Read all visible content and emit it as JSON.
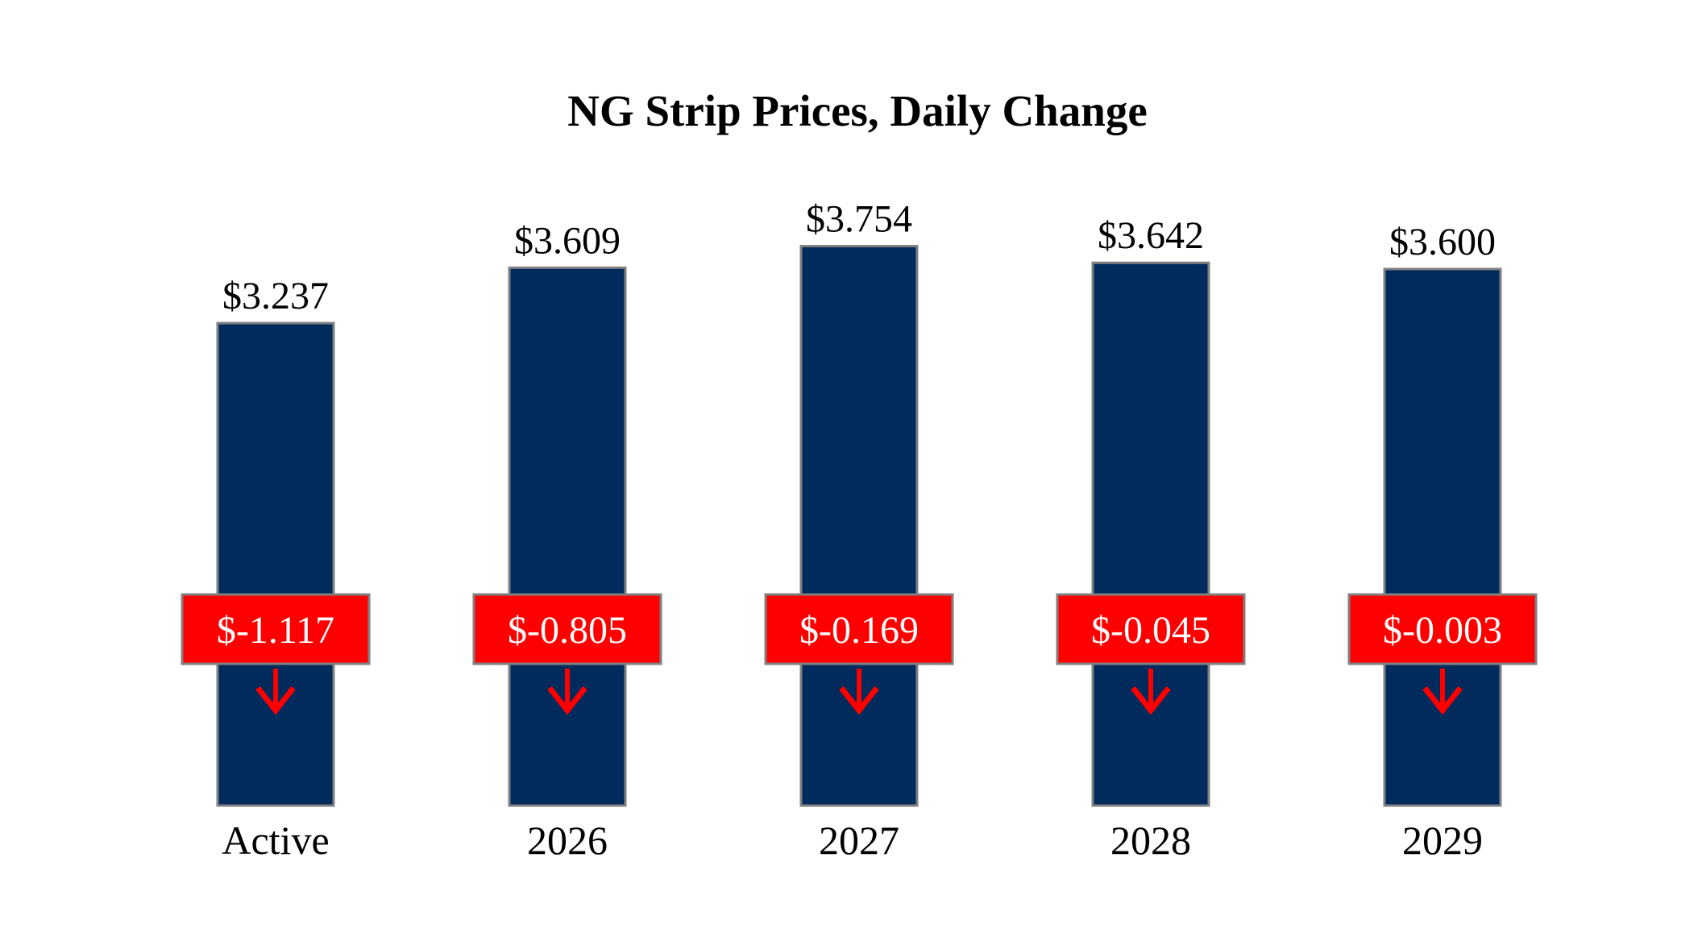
{
  "chart_data": {
    "type": "bar",
    "title": "NG Strip Prices, Daily Change",
    "xlabel": "",
    "ylabel": "",
    "ylim": [
      0,
      4.5
    ],
    "grid": false,
    "legend": "none",
    "categories": [
      "Active",
      "2026",
      "2027",
      "2028",
      "2029"
    ],
    "series": [
      {
        "values": [
          3.237,
          3.609,
          3.754,
          3.642,
          3.6
        ],
        "labels": [
          "$3.237",
          "$3.609",
          "$3.754",
          "$3.642",
          "$3.600"
        ]
      }
    ],
    "daily_change": {
      "values": [
        -1.117,
        -0.805,
        -0.169,
        -0.045,
        -0.003
      ],
      "labels": [
        "$-1.117",
        "$-0.805",
        "$-0.169",
        "$-0.045",
        "$-0.003"
      ],
      "direction": "down"
    },
    "colors": {
      "bar": "#002B5C",
      "bar_outline": "#808080",
      "change_box": "#FF0000",
      "change_text": "#FFFFFF",
      "arrow": "#FF0000"
    }
  }
}
